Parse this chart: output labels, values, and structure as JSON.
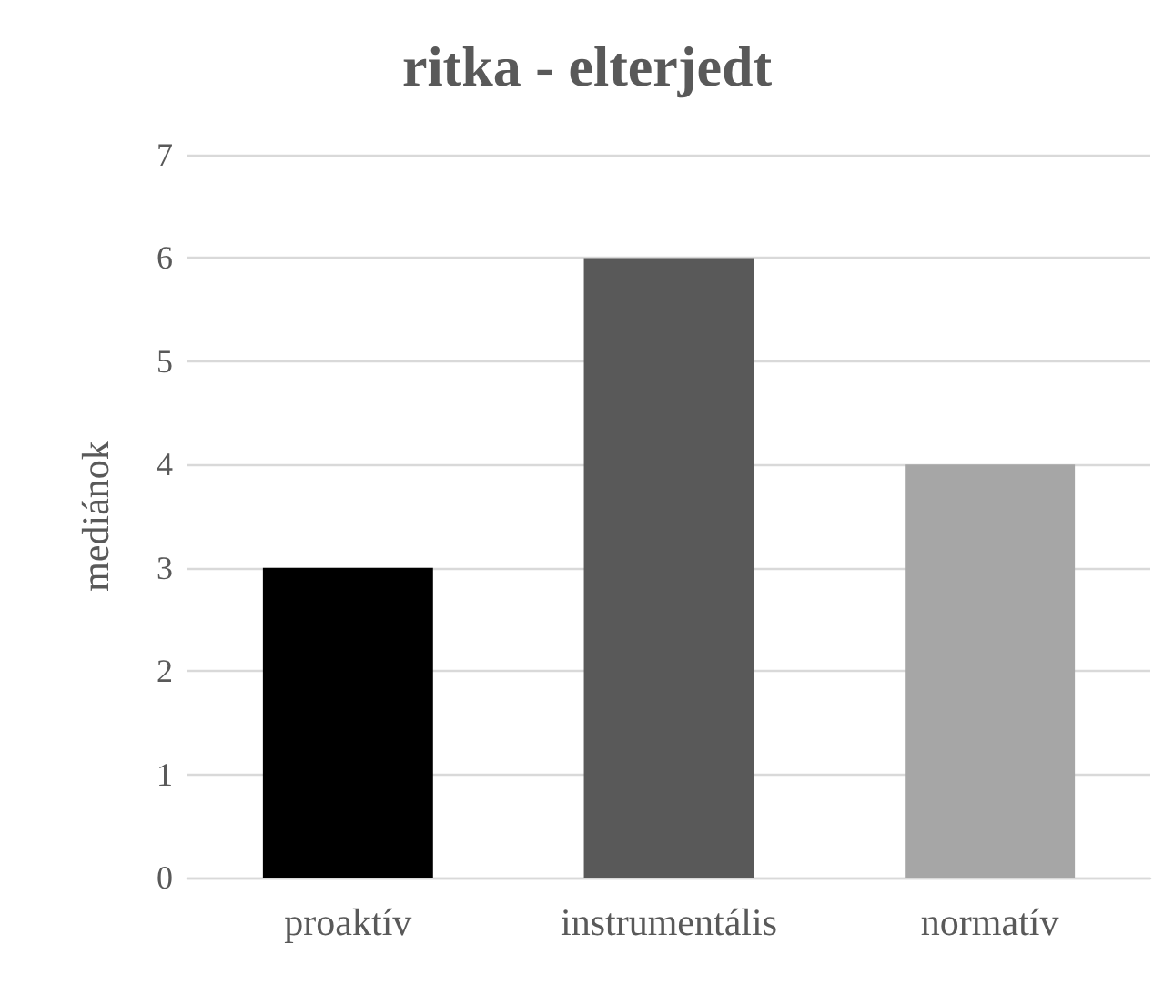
{
  "chart_data": {
    "type": "bar",
    "title": "ritka - elterjedt",
    "ylabel": "mediánok",
    "categories": [
      "proaktív",
      "instrumentális",
      "normatív"
    ],
    "values": [
      3,
      6,
      4
    ],
    "colors": [
      "#000000",
      "#595959",
      "#a6a6a6"
    ],
    "ylim": [
      0,
      7
    ],
    "yticks": [
      0,
      1,
      2,
      3,
      4,
      5,
      6,
      7
    ],
    "grid": "y"
  }
}
